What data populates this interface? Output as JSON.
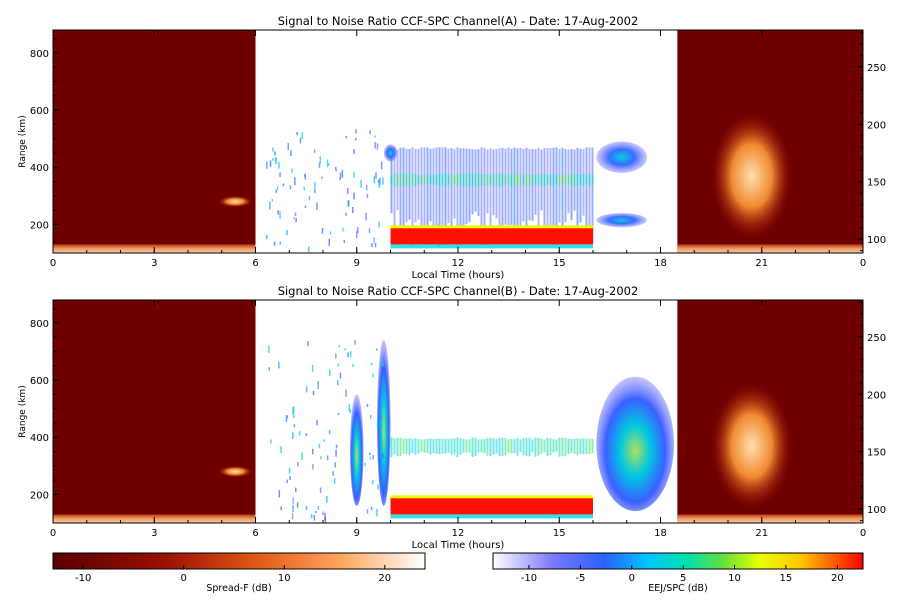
{
  "colors": {
    "spreadf_dark": "#6e0000",
    "spreadf_mid": "#e0601e",
    "spreadf_light": "#ffffff",
    "eej_white": "#ffffff",
    "eej_blue": "#3a4cff",
    "eej_cyan": "#00dcdc",
    "eej_yellow": "#ffff00",
    "eej_red": "#ff0000"
  },
  "chart_data": [
    {
      "type": "heatmap",
      "title": "Signal to Noise Ratio CCF-SPC Channel(A) - Date: 17-Aug-2002",
      "xlabel": "Local Time (hours)",
      "ylabel": "Range (km)",
      "xlim": [
        0,
        24
      ],
      "ylim": [
        100,
        880
      ],
      "y2lim": [
        88,
        282
      ],
      "x_ticks": [
        "0",
        "3",
        "6",
        "9",
        "12",
        "15",
        "18",
        "21",
        "0"
      ],
      "y_ticks": [
        "200",
        "400",
        "600",
        "800"
      ],
      "y2_ticks": [
        "100",
        "150",
        "200",
        "250"
      ],
      "regions": [
        {
          "name": "Spread-F",
          "x": [
            0,
            6
          ],
          "scale": "Spread-F (dB)"
        },
        {
          "name": "EEJ/SPC",
          "x": [
            6,
            18.5
          ],
          "scale": "EEJ/SPC (dB)"
        },
        {
          "name": "Spread-F",
          "x": [
            18.5,
            24
          ],
          "scale": "Spread-F (dB)"
        }
      ],
      "features": [
        {
          "x": [
            10,
            16
          ],
          "range_km": [
            120,
            470
          ],
          "level_db": -8
        },
        {
          "x": [
            10,
            16
          ],
          "range_km": [
            130,
            190
          ],
          "level_db": 22
        },
        {
          "x": [
            10,
            16
          ],
          "range_km": [
            330,
            380
          ],
          "level_db": 3
        },
        {
          "x": [
            9.8,
            10.2
          ],
          "range_km": [
            420,
            480
          ],
          "level_db": 2
        },
        {
          "x": [
            16.1,
            17.6
          ],
          "range_km": [
            380,
            490
          ],
          "level_db": 0
        },
        {
          "x": [
            16.1,
            17.6
          ],
          "range_km": [
            190,
            240
          ],
          "level_db": -2
        },
        {
          "x": [
            4.9,
            5.9
          ],
          "range_km": [
            260,
            300
          ],
          "level_db": 8
        },
        {
          "x": [
            19.5,
            21.9
          ],
          "range_km": [
            150,
            590
          ],
          "level_db": 12
        }
      ]
    },
    {
      "type": "heatmap",
      "title": "Signal to Noise Ratio CCF-SPC Channel(B) - Date: 17-Aug-2002",
      "xlabel": "Local Time (hours)",
      "ylabel": "Range (km)",
      "xlim": [
        0,
        24
      ],
      "ylim": [
        100,
        880
      ],
      "y2lim": [
        88,
        282
      ],
      "x_ticks": [
        "0",
        "3",
        "6",
        "9",
        "12",
        "15",
        "18",
        "21",
        "0"
      ],
      "y_ticks": [
        "200",
        "400",
        "600",
        "800"
      ],
      "y2_ticks": [
        "100",
        "150",
        "200",
        "250"
      ],
      "regions": [
        {
          "name": "Spread-F",
          "x": [
            0,
            6
          ],
          "scale": "Spread-F (dB)"
        },
        {
          "name": "EEJ/SPC",
          "x": [
            6,
            18.5
          ],
          "scale": "EEJ/SPC (dB)"
        },
        {
          "name": "Spread-F",
          "x": [
            18.5,
            24
          ],
          "scale": "Spread-F (dB)"
        }
      ],
      "features": [
        {
          "x": [
            8.8,
            9.2
          ],
          "range_km": [
            160,
            550
          ],
          "level_db": 2
        },
        {
          "x": [
            9.6,
            10.0
          ],
          "range_km": [
            160,
            740
          ],
          "level_db": 3
        },
        {
          "x": [
            10,
            16
          ],
          "range_km": [
            130,
            190
          ],
          "level_db": 22
        },
        {
          "x": [
            10,
            16
          ],
          "range_km": [
            330,
            400
          ],
          "level_db": 2
        },
        {
          "x": [
            16.1,
            18.4
          ],
          "range_km": [
            170,
            640
          ],
          "level_db": 1
        },
        {
          "x": [
            4.9,
            5.9
          ],
          "range_km": [
            260,
            300
          ],
          "level_db": 8
        },
        {
          "x": [
            19.5,
            21.9
          ],
          "range_km": [
            150,
            590
          ],
          "level_db": 12
        }
      ]
    }
  ],
  "colorbars": [
    {
      "label": "Spread-F (dB)",
      "range": [
        -13,
        24
      ],
      "ticks": [
        "-10",
        "0",
        "10",
        "20"
      ]
    },
    {
      "label": "EEJ/SPC (dB)",
      "range": [
        -13.5,
        22.5
      ],
      "ticks": [
        "-10",
        "-5",
        "0",
        "5",
        "10",
        "15",
        "20"
      ]
    }
  ]
}
